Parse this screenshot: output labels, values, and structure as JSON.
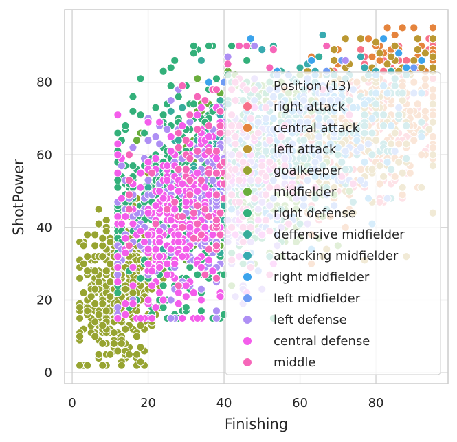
{
  "chart_data": {
    "type": "scatter",
    "xlabel": "Finishing",
    "ylabel": "ShotPower",
    "xlim": [
      -2,
      99
    ],
    "ylim": [
      -3,
      100
    ],
    "x_ticks": [
      "0",
      "20",
      "40",
      "60",
      "80"
    ],
    "y_ticks": [
      "0",
      "20",
      "40",
      "60",
      "80"
    ],
    "grid": true,
    "legend_position": "right",
    "legend_title": "Position (13)",
    "series": [
      {
        "name": "right attack",
        "color": "#f77189",
        "cx": 78,
        "cy": 68,
        "sx": 12,
        "sy": 13,
        "n": 150,
        "xr": [
          40,
          95
        ],
        "yr": [
          30,
          92
        ]
      },
      {
        "name": "central attack",
        "color": "#e5843d",
        "cx": 80,
        "cy": 70,
        "sx": 11,
        "sy": 12,
        "n": 220,
        "xr": [
          40,
          95
        ],
        "yr": [
          30,
          95
        ]
      },
      {
        "name": "left attack",
        "color": "#bb9832",
        "cx": 77,
        "cy": 67,
        "sx": 12,
        "sy": 13,
        "n": 150,
        "xr": [
          40,
          95
        ],
        "yr": [
          30,
          92
        ]
      },
      {
        "name": "goalkeeper",
        "color": "#97a431",
        "cx": 12,
        "cy": 22,
        "sx": 5,
        "sy": 10,
        "n": 400,
        "xr": [
          2,
          35
        ],
        "yr": [
          2,
          55
        ]
      },
      {
        "name": "midfielder",
        "color": "#6aad3d",
        "cx": 50,
        "cy": 56,
        "sx": 14,
        "sy": 14,
        "n": 200,
        "xr": [
          15,
          90
        ],
        "yr": [
          15,
          94
        ]
      },
      {
        "name": "right defense",
        "color": "#33b07a",
        "cx": 30,
        "cy": 50,
        "sx": 11,
        "sy": 16,
        "n": 450,
        "xr": [
          12,
          70
        ],
        "yr": [
          15,
          90
        ]
      },
      {
        "name": "deffensive midfielder",
        "color": "#36ad9a",
        "cx": 45,
        "cy": 60,
        "sx": 12,
        "sy": 12,
        "n": 150,
        "xr": [
          20,
          85
        ],
        "yr": [
          25,
          90
        ]
      },
      {
        "name": "attacking midfielder",
        "color": "#38aab0",
        "cx": 65,
        "cy": 68,
        "sx": 13,
        "sy": 10,
        "n": 150,
        "xr": [
          30,
          92
        ],
        "yr": [
          30,
          93
        ]
      },
      {
        "name": "right midfielder",
        "color": "#3ba3ec",
        "cx": 62,
        "cy": 66,
        "sx": 13,
        "sy": 11,
        "n": 120,
        "xr": [
          30,
          92
        ],
        "yr": [
          30,
          92
        ]
      },
      {
        "name": "left midfielder",
        "color": "#6e9bf4",
        "cx": 58,
        "cy": 62,
        "sx": 14,
        "sy": 12,
        "n": 120,
        "xr": [
          20,
          90
        ],
        "yr": [
          25,
          92
        ]
      },
      {
        "name": "left defense",
        "color": "#ae8ff4",
        "cx": 33,
        "cy": 46,
        "sx": 11,
        "sy": 14,
        "n": 250,
        "xr": [
          12,
          72
        ],
        "yr": [
          15,
          90
        ]
      },
      {
        "name": "central defense",
        "color": "#f45deb",
        "cx": 28,
        "cy": 42,
        "sx": 10,
        "sy": 14,
        "n": 250,
        "xr": [
          12,
          65
        ],
        "yr": [
          15,
          88
        ]
      },
      {
        "name": "middle",
        "color": "#f666b9",
        "cx": 42,
        "cy": 55,
        "sx": 13,
        "sy": 15,
        "n": 150,
        "xr": [
          15,
          85
        ],
        "yr": [
          20,
          90
        ]
      }
    ]
  }
}
